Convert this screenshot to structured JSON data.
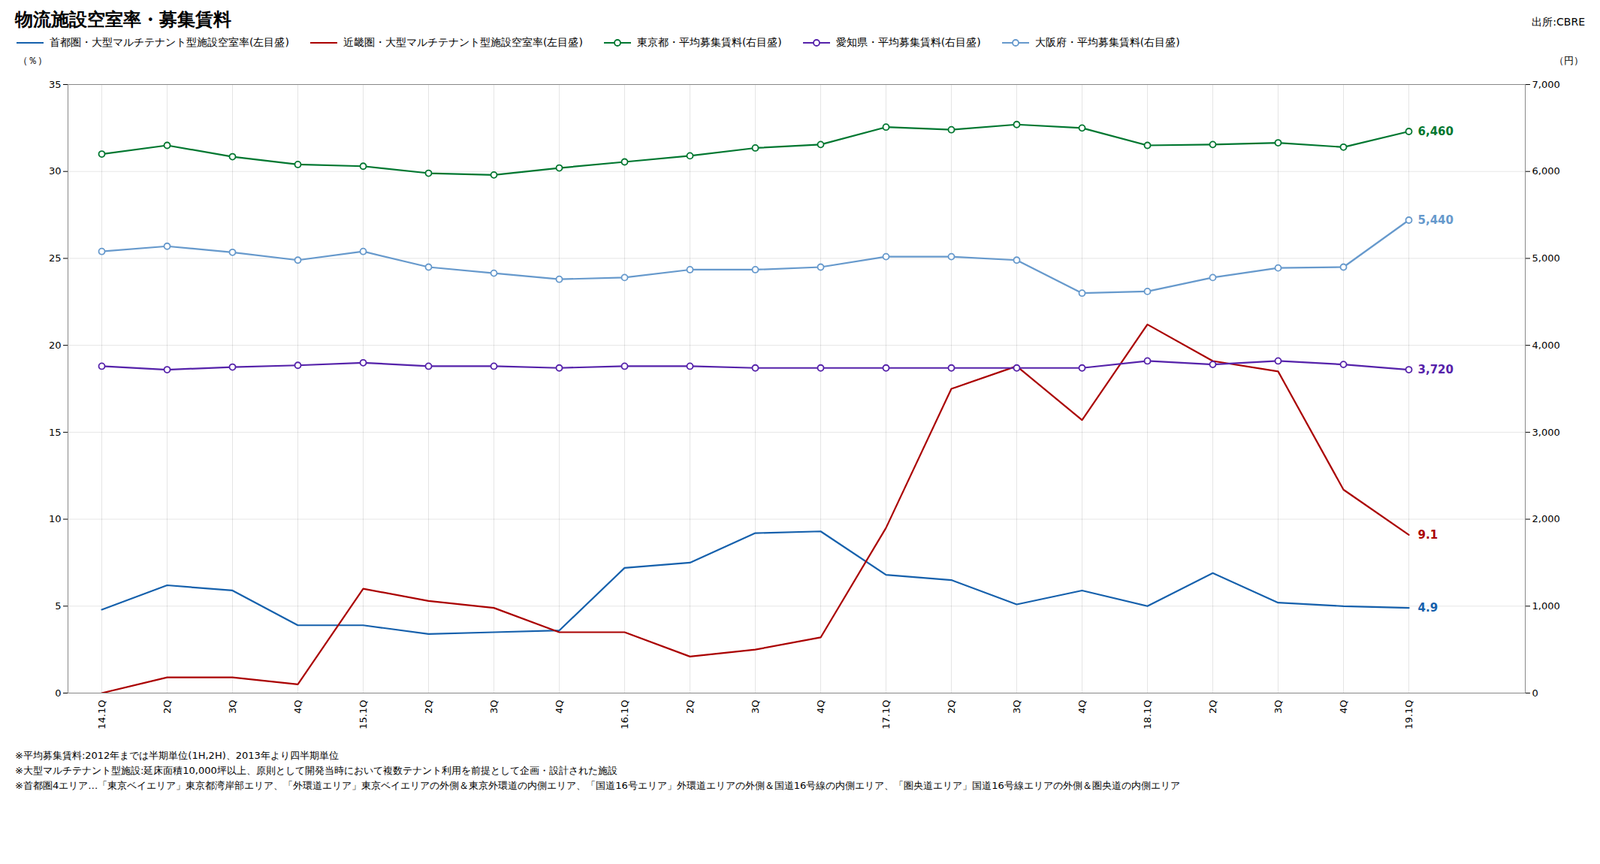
{
  "chart_data": {
    "type": "line",
    "title": "物流施設空室率・募集賃料",
    "source": "出所:CBRE",
    "notes": [
      "※平均募集賃料:2012年までは半期単位(1H,2H)、2013年より四半期単位",
      "※大型マルチテナント型施設:延床面積10,000坪以上、原則として開発当時において複数テナント利用を前提として企画・設計された施設",
      "※首都圏4エリア…「東京ベイエリア」東京都湾岸部エリア、「外環道エリア」東京ベイエリアの外側＆東京外環道の内側エリア、「国道16号エリア」外環道エリアの外側＆国道16号線の内側エリア、「圏央道エリア」国道16号線エリアの外側＆圏央道の内側エリア"
    ],
    "categories": [
      "14.1Q",
      "2Q",
      "3Q",
      "4Q",
      "15.1Q",
      "2Q",
      "3Q",
      "4Q",
      "16.1Q",
      "2Q",
      "3Q",
      "4Q",
      "17.1Q",
      "2Q",
      "3Q",
      "4Q",
      "18.1Q",
      "2Q",
      "3Q",
      "4Q",
      "19.1Q"
    ],
    "ylabel": "（％）",
    "y2label": "（円）",
    "ylim": [
      0,
      35
    ],
    "yticks": [
      0,
      5,
      10,
      15,
      20,
      25,
      30,
      35
    ],
    "y2lim": [
      0,
      7000
    ],
    "y2ticks": [
      0,
      {
        "value": 1000,
        "label": "1,000"
      },
      {
        "value": 2000,
        "label": "2,000"
      },
      {
        "value": 3000,
        "label": "3,000"
      },
      {
        "value": 4000,
        "label": "4,000"
      },
      {
        "value": 5000,
        "label": "5,000"
      },
      {
        "value": 6000,
        "label": "6,000"
      },
      {
        "value": 7000,
        "label": "7,000"
      }
    ],
    "grid": true,
    "legend": "top",
    "data_labels": true,
    "series": [
      {
        "name": "首都圏・大型マルチテナント型施設空室率(左目盛)",
        "color": "#1560AC",
        "values": [
          4.8,
          6.2,
          5.9,
          3.9,
          3.9,
          3.4,
          3.5,
          3.6,
          7.2,
          7.5,
          9.2,
          9.3,
          6.8,
          6.5,
          5.1,
          5.9,
          5.0,
          6.9,
          5.2,
          5.0,
          4.9
        ],
        "value_labels": [
          null,
          null,
          null,
          null,
          null,
          null,
          null,
          null,
          null,
          null,
          null,
          null,
          null,
          null,
          null,
          null,
          null,
          null,
          null,
          null,
          "4.9"
        ]
      },
      {
        "name": "近畿圏・大型マルチテナント型施設空室率(左目盛)",
        "color": "#AA0000",
        "values": [
          0.0,
          0.9,
          0.9,
          0.5,
          6.0,
          5.3,
          4.9,
          3.5,
          3.5,
          2.1,
          2.5,
          3.2,
          9.5,
          17.5,
          18.8,
          15.7,
          21.2,
          19.1,
          18.5,
          11.7,
          9.1
        ],
        "value_labels": [
          null,
          null,
          null,
          null,
          null,
          null,
          null,
          null,
          null,
          null,
          null,
          null,
          null,
          null,
          null,
          null,
          null,
          null,
          null,
          null,
          "9.1"
        ]
      },
      {
        "name": "東京都・平均募集賃料(右目盛)",
        "color": "#007730",
        "axis": "y2",
        "marker": "circle",
        "values": [
          6200,
          6300,
          6170,
          6080,
          6060,
          5980,
          5960,
          6040,
          6110,
          6180,
          6270,
          6310,
          6510,
          6480,
          6540,
          6500,
          6300,
          6310,
          6330,
          6280,
          6460
        ],
        "value_labels": [
          null,
          null,
          null,
          null,
          null,
          null,
          null,
          null,
          null,
          null,
          null,
          null,
          null,
          null,
          null,
          null,
          null,
          null,
          null,
          null,
          "6,460"
        ]
      },
      {
        "name": "愛知県・平均募集賃料(右目盛)",
        "color": "#5522AA",
        "axis": "y2",
        "marker": "circle",
        "values": [
          3760,
          3720,
          3750,
          3770,
          3800,
          3760,
          3760,
          3740,
          3760,
          3760,
          3740,
          3740,
          3740,
          3740,
          3740,
          3740,
          3820,
          3780,
          3820,
          3780,
          3720
        ],
        "value_labels": [
          null,
          null,
          null,
          null,
          null,
          null,
          null,
          null,
          null,
          null,
          null,
          null,
          null,
          null,
          null,
          null,
          null,
          null,
          null,
          null,
          "3,720"
        ]
      },
      {
        "name": "大阪府・平均募集賃料(右目盛)",
        "color": "#6699CC",
        "axis": "y2",
        "marker": "circle",
        "values": [
          5080,
          5140,
          5070,
          4980,
          5080,
          4900,
          4830,
          4760,
          4780,
          4870,
          4870,
          4900,
          5020,
          5020,
          4980,
          4600,
          4620,
          4780,
          4890,
          4900,
          5440
        ],
        "value_labels": [
          null,
          null,
          null,
          null,
          null,
          null,
          null,
          null,
          null,
          null,
          null,
          null,
          null,
          null,
          null,
          null,
          null,
          null,
          null,
          null,
          "5,440"
        ]
      }
    ]
  }
}
